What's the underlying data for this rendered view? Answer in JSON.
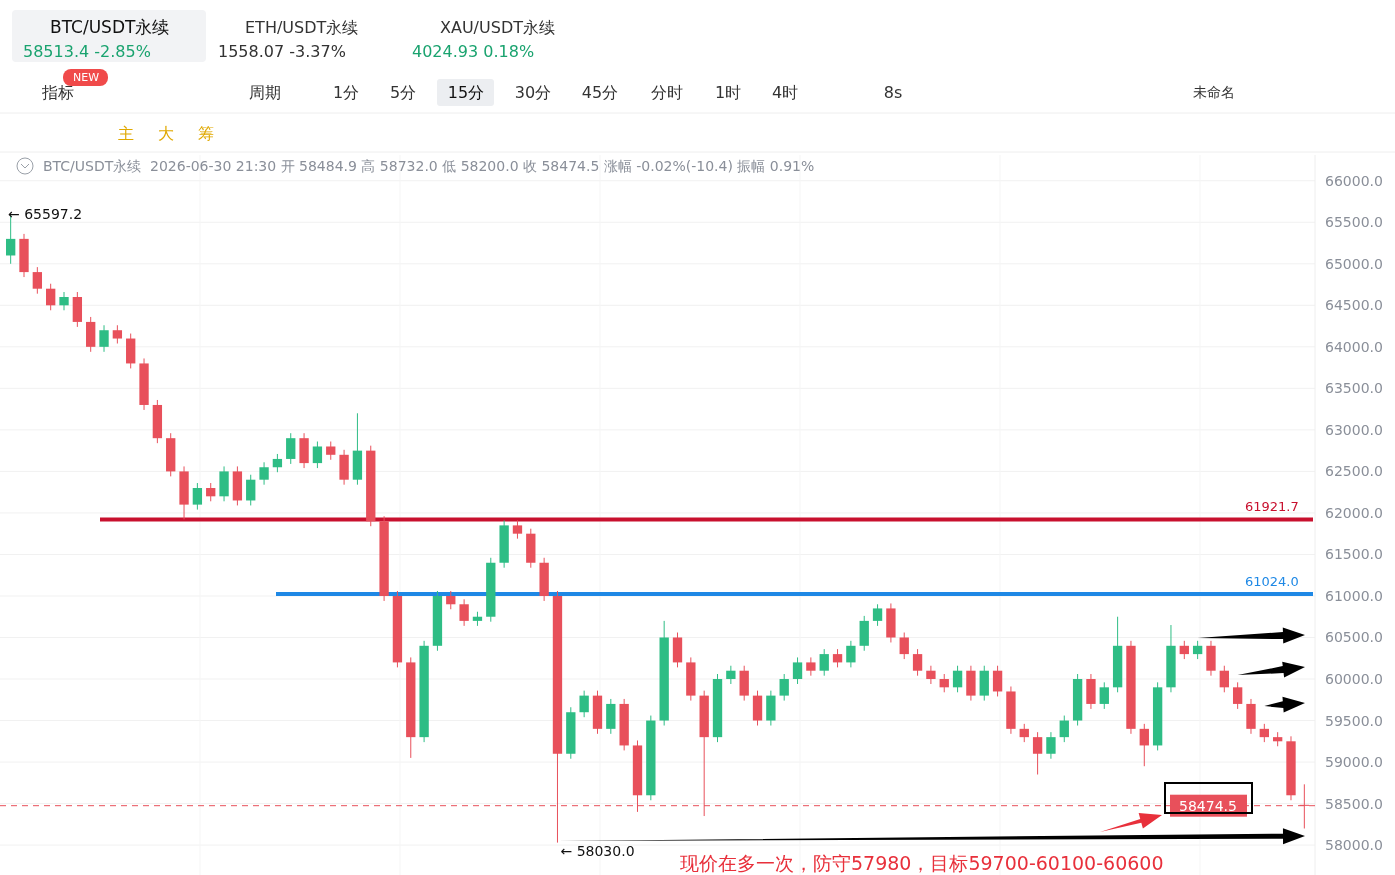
{
  "chart_data": {
    "type": "candlestick",
    "title": "BTC/USDT永续",
    "subtitle": "2026-06-30 21:30 开 58484.9 高 58732.0 低 58200.0 收 58474.5 涨幅 -0.02%(-10.4) 振幅 0.91%",
    "categories": [
      null,
      null,
      null,
      null,
      null,
      null,
      null,
      null,
      null,
      null,
      null,
      null,
      null,
      null,
      null,
      null,
      null,
      null,
      null,
      null,
      null,
      null,
      null,
      null,
      null,
      null,
      null,
      null,
      null,
      null,
      null,
      null,
      null,
      null,
      null,
      null,
      null,
      null,
      null,
      null,
      null,
      null,
      null,
      null,
      null,
      null,
      null,
      null,
      null,
      null,
      null,
      null,
      null,
      null,
      null,
      null,
      null,
      null,
      null,
      null,
      null,
      null,
      null,
      null,
      null,
      null,
      null,
      null,
      null,
      null,
      null,
      null,
      null,
      null,
      null,
      null,
      null,
      null,
      null,
      null,
      null,
      null,
      null,
      null,
      null,
      null,
      null,
      null,
      null,
      null,
      null,
      null,
      null,
      null,
      null,
      null,
      null,
      null
    ],
    "ohlc": [
      [
        65100,
        65597.2,
        65000,
        65300
      ],
      [
        65300,
        65360,
        64840,
        64900
      ],
      [
        64900,
        64960,
        64640,
        64700
      ],
      [
        64700,
        64760,
        64440,
        64500
      ],
      [
        64500,
        64660,
        64440,
        64600
      ],
      [
        64600,
        64660,
        64240,
        64300
      ],
      [
        64300,
        64360,
        63940,
        64000
      ],
      [
        64000,
        64260,
        63940,
        64200
      ],
      [
        64200,
        64260,
        64040,
        64100
      ],
      [
        64100,
        64160,
        63740,
        63800
      ],
      [
        63800,
        63860,
        63240,
        63300
      ],
      [
        63300,
        63360,
        62840,
        62900
      ],
      [
        62900,
        62960,
        62440,
        62500
      ],
      [
        62500,
        62560,
        61921.7,
        62100
      ],
      [
        62100,
        62360,
        62040,
        62300
      ],
      [
        62300,
        62360,
        62140,
        62200
      ],
      [
        62200,
        62560,
        62140,
        62500
      ],
      [
        62500,
        62560,
        62090,
        62150
      ],
      [
        62150,
        62460,
        62090,
        62400
      ],
      [
        62400,
        62610,
        62340,
        62550
      ],
      [
        62550,
        62710,
        62490,
        62650
      ],
      [
        62650,
        62960,
        62590,
        62900
      ],
      [
        62900,
        62960,
        62540,
        62600
      ],
      [
        62600,
        62860,
        62540,
        62800
      ],
      [
        62800,
        62860,
        62640,
        62700
      ],
      [
        62700,
        62760,
        62340,
        62400
      ],
      [
        62400,
        63200,
        62340,
        62750
      ],
      [
        62750,
        62810,
        61840,
        61900
      ],
      [
        61900,
        61960,
        60940,
        61000
      ],
      [
        61000,
        61060,
        60140,
        60200
      ],
      [
        60200,
        60260,
        59050,
        59300
      ],
      [
        59300,
        60460,
        59240,
        60400
      ],
      [
        60400,
        61060,
        60340,
        61000
      ],
      [
        61000,
        61060,
        60840,
        60900
      ],
      [
        60900,
        60960,
        60640,
        60700
      ],
      [
        60700,
        60810,
        60640,
        60750
      ],
      [
        60750,
        61460,
        60690,
        61400
      ],
      [
        61400,
        61910,
        61340,
        61850
      ],
      [
        61850,
        61910,
        61690,
        61750
      ],
      [
        61750,
        61810,
        61340,
        61400
      ],
      [
        61400,
        61460,
        60940,
        61000
      ],
      [
        61000,
        61060,
        58030,
        59100
      ],
      [
        59100,
        59660,
        59040,
        59600
      ],
      [
        59600,
        59860,
        59540,
        59800
      ],
      [
        59800,
        59860,
        59340,
        59400
      ],
      [
        59400,
        59760,
        59340,
        59700
      ],
      [
        59700,
        59760,
        59140,
        59200
      ],
      [
        59200,
        59260,
        58400,
        58600
      ],
      [
        58600,
        59560,
        58540,
        59500
      ],
      [
        59500,
        60700,
        59440,
        60500
      ],
      [
        60500,
        60560,
        60140,
        60200
      ],
      [
        60200,
        60260,
        59740,
        59800
      ],
      [
        59800,
        59860,
        58350,
        59300
      ],
      [
        59300,
        60060,
        59240,
        60000
      ],
      [
        60000,
        60160,
        59940,
        60100
      ],
      [
        60100,
        60160,
        59740,
        59800
      ],
      [
        59800,
        59860,
        59440,
        59500
      ],
      [
        59500,
        59860,
        59440,
        59800
      ],
      [
        59800,
        60060,
        59740,
        60000
      ],
      [
        60000,
        60260,
        59940,
        60200
      ],
      [
        60200,
        60260,
        60040,
        60100
      ],
      [
        60100,
        60360,
        60040,
        60300
      ],
      [
        60300,
        60360,
        60140,
        60200
      ],
      [
        60200,
        60460,
        60140,
        60400
      ],
      [
        60400,
        60760,
        60340,
        60700
      ],
      [
        60700,
        60900,
        60640,
        60850
      ],
      [
        60850,
        60910,
        60440,
        60500
      ],
      [
        60500,
        60560,
        60240,
        60300
      ],
      [
        60300,
        60360,
        60040,
        60100
      ],
      [
        60100,
        60160,
        59940,
        60000
      ],
      [
        60000,
        60060,
        59840,
        59900
      ],
      [
        59900,
        60160,
        59840,
        60100
      ],
      [
        60100,
        60160,
        59740,
        59800
      ],
      [
        59800,
        60160,
        59740,
        60100
      ],
      [
        60100,
        60160,
        59790,
        59850
      ],
      [
        59850,
        59910,
        59340,
        59400
      ],
      [
        59400,
        59460,
        59240,
        59300
      ],
      [
        59300,
        59360,
        58850,
        59100
      ],
      [
        59100,
        59360,
        59040,
        59300
      ],
      [
        59300,
        59560,
        59240,
        59500
      ],
      [
        59500,
        60060,
        59440,
        60000
      ],
      [
        60000,
        60060,
        59640,
        59700
      ],
      [
        59700,
        59960,
        59640,
        59900
      ],
      [
        59900,
        60750,
        59840,
        60400
      ],
      [
        60400,
        60460,
        59340,
        59400
      ],
      [
        59400,
        59460,
        58950,
        59200
      ],
      [
        59200,
        59960,
        59140,
        59900
      ],
      [
        59900,
        60650,
        59840,
        60400
      ],
      [
        60400,
        60460,
        60240,
        60300
      ],
      [
        60300,
        60460,
        60240,
        60400
      ],
      [
        60400,
        60460,
        60040,
        60100
      ],
      [
        60100,
        60160,
        59840,
        59900
      ],
      [
        59900,
        59960,
        59640,
        59700
      ],
      [
        59700,
        59760,
        59340,
        59400
      ],
      [
        59400,
        59460,
        59240,
        59300
      ],
      [
        59300,
        59360,
        59190,
        59250
      ],
      [
        59250,
        59310,
        58540,
        58600
      ],
      [
        58484.9,
        58732,
        58200,
        58474.5
      ]
    ],
    "ylim": [
      57640,
      66310
    ],
    "yticks": [
      {
        "value": 58000,
        "label": "58000.0"
      },
      {
        "value": 58500,
        "label": "58500.0"
      },
      {
        "value": 59000,
        "label": "59000.0"
      },
      {
        "value": 59500,
        "label": "59500.0"
      },
      {
        "value": 60000,
        "label": "60000.0"
      },
      {
        "value": 60500,
        "label": "60500.0"
      },
      {
        "value": 61000,
        "label": "61000.0"
      },
      {
        "value": 61500,
        "label": "61500.0"
      },
      {
        "value": 62000,
        "label": "62000.0"
      },
      {
        "value": 62500,
        "label": "62500.0"
      },
      {
        "value": 63000,
        "label": "63000.0"
      },
      {
        "value": 63500,
        "label": "63500.0"
      },
      {
        "value": 64000,
        "label": "64000.0"
      },
      {
        "value": 64500,
        "label": "64500.0"
      },
      {
        "value": 65000,
        "label": "65000.0"
      },
      {
        "value": 65500,
        "label": "65500.0"
      },
      {
        "value": 66000,
        "label": "66000.0"
      }
    ],
    "ref_lines": [
      {
        "axis": "y",
        "value": 61921.7,
        "label": "61921.7",
        "color": "#c8102e"
      },
      {
        "axis": "y",
        "value": 61024.0,
        "label": "61024.0",
        "color": "#1e88e5"
      },
      {
        "axis": "y",
        "value": 58474.5,
        "label": "58474.5",
        "color": "#e8505b",
        "line_style": "dashed"
      }
    ],
    "annotations": [
      "← 65597.2",
      "← 58030.0",
      "现价在多一次，防守57980，目标59700-60100-60600",
      "BTC/USDT永续",
      "58513.4 -2.85%",
      "ETH/USDT永续",
      "1558.07 -3.37%",
      "XAU/USDT永续",
      "4024.93 0.18%",
      "NEW",
      "指标",
      "周期",
      "1分",
      "5分",
      "15分",
      "30分",
      "45分",
      "分时",
      "1时",
      "4时",
      "8s",
      "未命名",
      "主",
      "大",
      "筹"
    ],
    "grid": true,
    "legend": false
  }
}
